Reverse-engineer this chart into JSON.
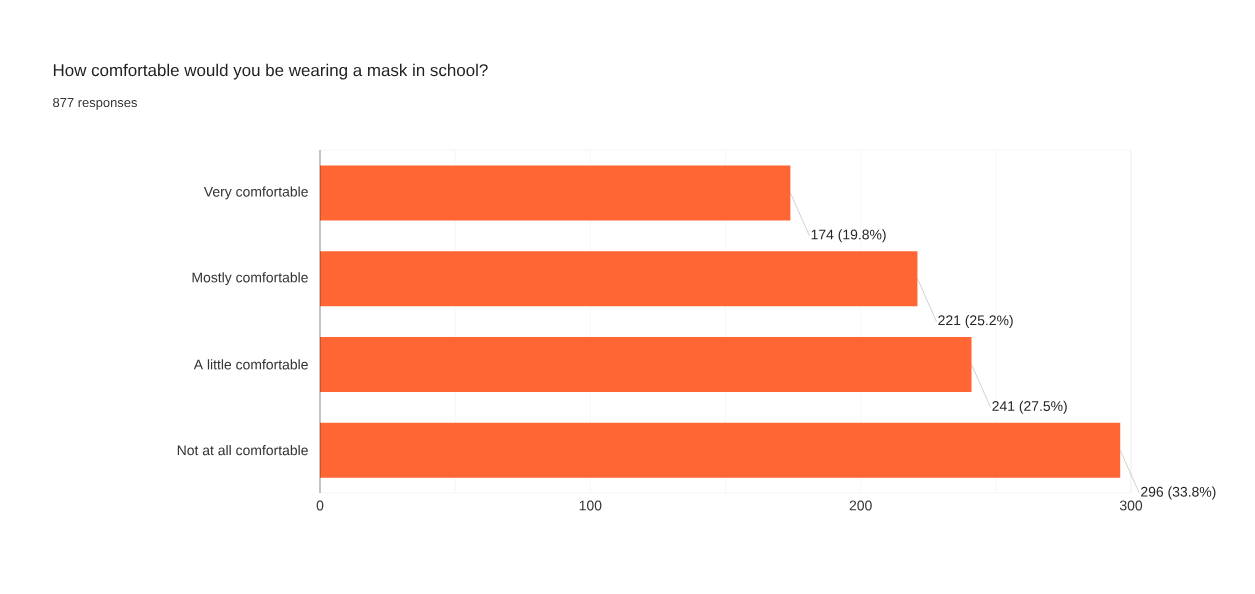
{
  "chart_data": {
    "type": "bar",
    "orientation": "horizontal",
    "title": "How comfortable would you be wearing a mask in school?",
    "subtitle": "877 responses",
    "categories": [
      "Very comfortable",
      "Mostly comfortable",
      "A little comfortable",
      "Not at all comfortable"
    ],
    "values": [
      174,
      221,
      241,
      296
    ],
    "value_labels": [
      "174 (19.8%)",
      "221 (25.2%)",
      "241 (27.5%)",
      "296 (33.8%)"
    ],
    "color": "#ff6633",
    "xlim": [
      0,
      300
    ],
    "xticks": [
      0,
      {
        "value": 50,
        "label": null
      },
      100,
      {
        "value": 150,
        "label": null
      },
      200,
      {
        "value": 250,
        "label": null
      },
      300
    ],
    "grid": "x"
  }
}
